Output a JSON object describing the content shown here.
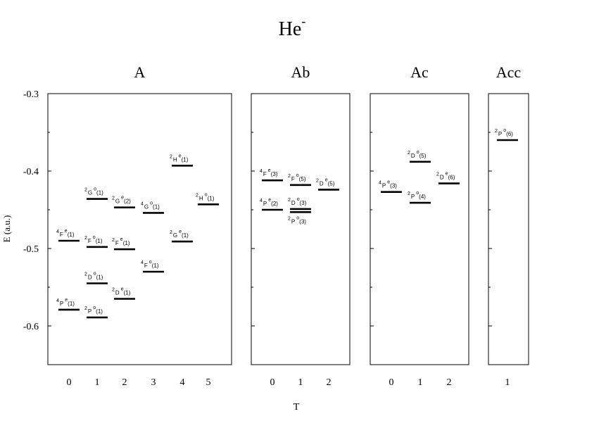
{
  "chart_data": {
    "type": "scatter",
    "title": "He",
    "title_superscript": "-",
    "ylabel": "E (a.u.)",
    "xlabel": "T",
    "ylim": [
      -0.65,
      -0.3
    ],
    "y_ticks": [
      "-0.3",
      "-0.4",
      "-0.5",
      "-0.6"
    ],
    "panels": [
      {
        "title": "A",
        "x_ticks": [
          "0",
          "1",
          "2",
          "3",
          "4",
          "5"
        ],
        "levels": [
          {
            "x": 0,
            "y": -0.49,
            "mult": "4",
            "L": "F",
            "parity": "e",
            "n": "(1)"
          },
          {
            "x": 0,
            "y": -0.579,
            "mult": "4",
            "L": "P",
            "parity": "e",
            "n": "(1)"
          },
          {
            "x": 1,
            "y": -0.436,
            "mult": "2",
            "L": "G",
            "parity": "o",
            "n": "(1)"
          },
          {
            "x": 1,
            "y": -0.498,
            "mult": "2",
            "L": "F",
            "parity": "o",
            "n": "(1)"
          },
          {
            "x": 1,
            "y": -0.545,
            "mult": "2",
            "L": "D",
            "parity": "o",
            "n": "(1)"
          },
          {
            "x": 1,
            "y": -0.589,
            "mult": "2",
            "L": "P",
            "parity": "o",
            "n": "(1)"
          },
          {
            "x": 2,
            "y": -0.447,
            "mult": "2",
            "L": "G",
            "parity": "e",
            "n": "(2)"
          },
          {
            "x": 2,
            "y": -0.501,
            "mult": "2",
            "L": "F",
            "parity": "e",
            "n": "(1)"
          },
          {
            "x": 2,
            "y": -0.565,
            "mult": "2",
            "L": "D",
            "parity": "e",
            "n": "(1)"
          },
          {
            "x": 3,
            "y": -0.454,
            "mult": "4",
            "L": "G",
            "parity": "o",
            "n": "(1)"
          },
          {
            "x": 3,
            "y": -0.53,
            "mult": "4",
            "L": "F",
            "parity": "o",
            "n": "(1)"
          },
          {
            "x": 4,
            "y": -0.393,
            "mult": "2",
            "L": "H",
            "parity": "e",
            "n": "(1)"
          },
          {
            "x": 4,
            "y": -0.491,
            "mult": "2",
            "L": "G",
            "parity": "e",
            "n": "(1)"
          },
          {
            "x": 5,
            "y": -0.443,
            "mult": "2",
            "L": "H",
            "parity": "o",
            "n": "(1)"
          }
        ]
      },
      {
        "title": "Ab",
        "x_ticks": [
          "0",
          "1",
          "2"
        ],
        "levels": [
          {
            "x": 0,
            "y": -0.412,
            "mult": "4",
            "L": "F",
            "parity": "e",
            "n": "(3)"
          },
          {
            "x": 0,
            "y": -0.45,
            "mult": "4",
            "L": "P",
            "parity": "e",
            "n": "(2)"
          },
          {
            "x": 1,
            "y": -0.418,
            "mult": "2",
            "L": "F",
            "parity": "o",
            "n": "(5)"
          },
          {
            "x": 1,
            "y": -0.449,
            "mult": "2",
            "L": "D",
            "parity": "o",
            "n": "(3)",
            "label_pos": "above"
          },
          {
            "x": 1,
            "y": -0.453,
            "mult": "2",
            "L": "P",
            "parity": "o",
            "n": "(3)",
            "label_pos": "below"
          },
          {
            "x": 2,
            "y": -0.424,
            "mult": "2",
            "L": "D",
            "parity": "e",
            "n": "(5)"
          }
        ]
      },
      {
        "title": "Ac",
        "x_ticks": [
          "0",
          "1",
          "2"
        ],
        "levels": [
          {
            "x": 0,
            "y": -0.427,
            "mult": "4",
            "L": "P",
            "parity": "e",
            "n": "(3)"
          },
          {
            "x": 1,
            "y": -0.388,
            "mult": "2",
            "L": "D",
            "parity": "o",
            "n": "(5)"
          },
          {
            "x": 1,
            "y": -0.441,
            "mult": "2",
            "L": "P",
            "parity": "o",
            "n": "(4)"
          },
          {
            "x": 2,
            "y": -0.416,
            "mult": "2",
            "L": "D",
            "parity": "e",
            "n": "(6)"
          }
        ]
      },
      {
        "title": "Acc",
        "x_ticks": [
          "1"
        ],
        "levels": [
          {
            "x": 1,
            "y": -0.36,
            "mult": "2",
            "L": "P",
            "parity": "o",
            "n": "(6)"
          }
        ]
      }
    ]
  }
}
